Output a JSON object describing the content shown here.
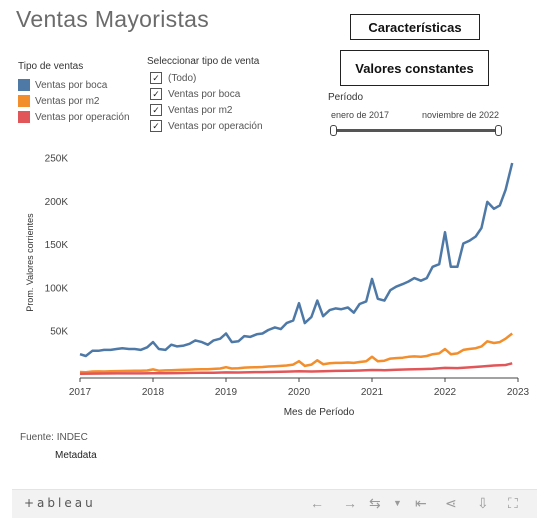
{
  "page": {
    "title": "Ventas Mayoristas"
  },
  "buttons": {
    "caracteristicas": "Características",
    "valores": "Valores constantes"
  },
  "legend": {
    "title": "Tipo de ventas",
    "items": [
      {
        "label": "Ventas por boca",
        "color": "#4e79a7"
      },
      {
        "label": "Ventas por m2",
        "color": "#f28e2b"
      },
      {
        "label": "Ventas por operación",
        "color": "#e15759"
      }
    ]
  },
  "filter": {
    "title": "Seleccionar tipo de venta",
    "items": [
      {
        "label": "(Todo)",
        "checked": true
      },
      {
        "label": "Ventas por boca",
        "checked": true
      },
      {
        "label": "Ventas por m2",
        "checked": true
      },
      {
        "label": "Ventas por operación",
        "checked": true
      }
    ]
  },
  "periodo": {
    "label": "Período",
    "start": "enero de 2017",
    "end": "noviembre de 2022"
  },
  "chart_data": {
    "type": "line",
    "xlabel": "Mes de Período",
    "ylabel": "Prom. Valores corrientes",
    "xlim": [
      2017,
      2023
    ],
    "ylim": [
      0,
      260000
    ],
    "x_ticks": [
      "2017",
      "2018",
      "2019",
      "2020",
      "2021",
      "2022",
      "2023"
    ],
    "y_ticks": [
      "50K",
      "100K",
      "150K",
      "200K",
      "250K"
    ],
    "grid": false,
    "series": [
      {
        "name": "Ventas por boca",
        "color": "#4e79a7",
        "points": [
          [
            2017.0,
            24000
          ],
          [
            2017.08,
            22000
          ],
          [
            2017.17,
            28000
          ],
          [
            2017.25,
            28000
          ],
          [
            2017.33,
            29000
          ],
          [
            2017.42,
            29000
          ],
          [
            2017.5,
            30000
          ],
          [
            2017.58,
            31000
          ],
          [
            2017.67,
            30000
          ],
          [
            2017.75,
            30000
          ],
          [
            2017.83,
            29000
          ],
          [
            2017.92,
            32000
          ],
          [
            2018.0,
            38000
          ],
          [
            2018.08,
            30000
          ],
          [
            2018.17,
            29000
          ],
          [
            2018.25,
            35000
          ],
          [
            2018.33,
            33000
          ],
          [
            2018.42,
            34000
          ],
          [
            2018.5,
            36000
          ],
          [
            2018.58,
            40000
          ],
          [
            2018.67,
            38000
          ],
          [
            2018.75,
            35000
          ],
          [
            2018.83,
            40000
          ],
          [
            2018.92,
            42000
          ],
          [
            2019.0,
            48000
          ],
          [
            2019.08,
            38000
          ],
          [
            2019.17,
            39000
          ],
          [
            2019.25,
            45000
          ],
          [
            2019.33,
            44000
          ],
          [
            2019.42,
            47000
          ],
          [
            2019.5,
            48000
          ],
          [
            2019.58,
            52000
          ],
          [
            2019.67,
            55000
          ],
          [
            2019.75,
            53000
          ],
          [
            2019.83,
            60000
          ],
          [
            2019.92,
            63000
          ],
          [
            2020.0,
            83000
          ],
          [
            2020.08,
            60000
          ],
          [
            2020.17,
            67000
          ],
          [
            2020.25,
            86000
          ],
          [
            2020.33,
            68000
          ],
          [
            2020.42,
            75000
          ],
          [
            2020.5,
            77000
          ],
          [
            2020.58,
            76000
          ],
          [
            2020.67,
            78000
          ],
          [
            2020.75,
            72000
          ],
          [
            2020.83,
            82000
          ],
          [
            2020.92,
            85000
          ],
          [
            2021.0,
            111000
          ],
          [
            2021.08,
            88000
          ],
          [
            2021.17,
            86000
          ],
          [
            2021.25,
            98000
          ],
          [
            2021.33,
            102000
          ],
          [
            2021.42,
            105000
          ],
          [
            2021.5,
            108000
          ],
          [
            2021.58,
            112000
          ],
          [
            2021.67,
            109000
          ],
          [
            2021.75,
            112000
          ],
          [
            2021.83,
            125000
          ],
          [
            2021.92,
            128000
          ],
          [
            2022.0,
            165000
          ],
          [
            2022.08,
            125000
          ],
          [
            2022.17,
            125000
          ],
          [
            2022.25,
            152000
          ],
          [
            2022.33,
            155000
          ],
          [
            2022.42,
            160000
          ],
          [
            2022.5,
            170000
          ],
          [
            2022.58,
            200000
          ],
          [
            2022.67,
            192000
          ],
          [
            2022.75,
            196000
          ],
          [
            2022.83,
            214000
          ],
          [
            2022.92,
            245000
          ]
        ]
      },
      {
        "name": "Ventas por m2",
        "color": "#f28e2b",
        "points": [
          [
            2017.0,
            3500
          ],
          [
            2017.08,
            3200
          ],
          [
            2017.17,
            4000
          ],
          [
            2017.25,
            4200
          ],
          [
            2017.33,
            4000
          ],
          [
            2017.42,
            4300
          ],
          [
            2017.5,
            4500
          ],
          [
            2017.58,
            4600
          ],
          [
            2017.67,
            4700
          ],
          [
            2017.75,
            4800
          ],
          [
            2017.83,
            4900
          ],
          [
            2017.92,
            5200
          ],
          [
            2018.0,
            6500
          ],
          [
            2018.08,
            5000
          ],
          [
            2018.17,
            5300
          ],
          [
            2018.25,
            5500
          ],
          [
            2018.33,
            5800
          ],
          [
            2018.42,
            6000
          ],
          [
            2018.5,
            6200
          ],
          [
            2018.58,
            6500
          ],
          [
            2018.67,
            6600
          ],
          [
            2018.75,
            6700
          ],
          [
            2018.83,
            7000
          ],
          [
            2018.92,
            7500
          ],
          [
            2019.0,
            9000
          ],
          [
            2019.08,
            7500
          ],
          [
            2019.17,
            7800
          ],
          [
            2019.25,
            8500
          ],
          [
            2019.33,
            8800
          ],
          [
            2019.42,
            9000
          ],
          [
            2019.5,
            9300
          ],
          [
            2019.58,
            9800
          ],
          [
            2019.67,
            10200
          ],
          [
            2019.75,
            10500
          ],
          [
            2019.83,
            11000
          ],
          [
            2019.92,
            12000
          ],
          [
            2020.0,
            16000
          ],
          [
            2020.08,
            10500
          ],
          [
            2020.17,
            12000
          ],
          [
            2020.25,
            17000
          ],
          [
            2020.33,
            12500
          ],
          [
            2020.42,
            13500
          ],
          [
            2020.5,
            14000
          ],
          [
            2020.58,
            14000
          ],
          [
            2020.67,
            14500
          ],
          [
            2020.75,
            14000
          ],
          [
            2020.83,
            15000
          ],
          [
            2020.92,
            16000
          ],
          [
            2021.0,
            21000
          ],
          [
            2021.08,
            16000
          ],
          [
            2021.17,
            16500
          ],
          [
            2021.25,
            19000
          ],
          [
            2021.33,
            19500
          ],
          [
            2021.42,
            20000
          ],
          [
            2021.5,
            21000
          ],
          [
            2021.58,
            21500
          ],
          [
            2021.67,
            21000
          ],
          [
            2021.75,
            22000
          ],
          [
            2021.83,
            24000
          ],
          [
            2021.92,
            25000
          ],
          [
            2022.0,
            30000
          ],
          [
            2022.08,
            24000
          ],
          [
            2022.17,
            25000
          ],
          [
            2022.25,
            29000
          ],
          [
            2022.33,
            30000
          ],
          [
            2022.42,
            31000
          ],
          [
            2022.5,
            33000
          ],
          [
            2022.58,
            39000
          ],
          [
            2022.67,
            37000
          ],
          [
            2022.75,
            38000
          ],
          [
            2022.83,
            42000
          ],
          [
            2022.92,
            48000
          ]
        ]
      },
      {
        "name": "Ventas por operación",
        "color": "#e15759",
        "points": [
          [
            2017.0,
            1500
          ],
          [
            2017.17,
            1600
          ],
          [
            2017.33,
            1700
          ],
          [
            2017.5,
            1800
          ],
          [
            2017.67,
            1800
          ],
          [
            2017.83,
            1900
          ],
          [
            2018.0,
            2100
          ],
          [
            2018.17,
            2000
          ],
          [
            2018.33,
            2200
          ],
          [
            2018.5,
            2400
          ],
          [
            2018.67,
            2500
          ],
          [
            2018.83,
            2700
          ],
          [
            2019.0,
            3000
          ],
          [
            2019.17,
            2900
          ],
          [
            2019.33,
            3200
          ],
          [
            2019.5,
            3400
          ],
          [
            2019.67,
            3600
          ],
          [
            2019.83,
            3900
          ],
          [
            2020.0,
            4400
          ],
          [
            2020.17,
            4000
          ],
          [
            2020.33,
            4300
          ],
          [
            2020.5,
            4700
          ],
          [
            2020.67,
            4900
          ],
          [
            2020.83,
            5200
          ],
          [
            2021.0,
            5800
          ],
          [
            2021.17,
            5600
          ],
          [
            2021.33,
            6000
          ],
          [
            2021.5,
            6500
          ],
          [
            2021.67,
            6800
          ],
          [
            2021.83,
            7300
          ],
          [
            2022.0,
            8200
          ],
          [
            2022.17,
            8000
          ],
          [
            2022.33,
            8800
          ],
          [
            2022.5,
            9800
          ],
          [
            2022.67,
            11000
          ],
          [
            2022.83,
            11500
          ],
          [
            2022.92,
            13500
          ]
        ]
      }
    ]
  },
  "footer": {
    "source": "Fuente: INDEC",
    "metadata": "Metadata"
  },
  "toolbar": {
    "logo": "+ableau"
  },
  "icons": [
    "tableau-logo-icon",
    "undo-icon",
    "redo-icon",
    "revert-icon",
    "dropdown-icon",
    "back-to-start-icon",
    "share-icon",
    "download-icon",
    "fullscreen-icon"
  ]
}
